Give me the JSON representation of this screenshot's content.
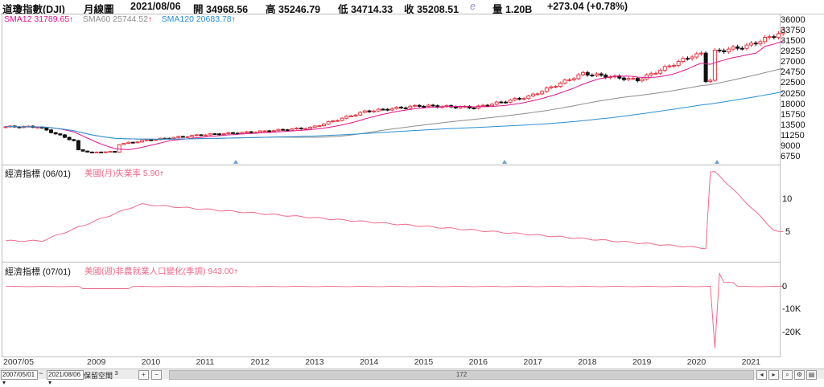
{
  "header": {
    "symbol": "道瓊指數(DJI)",
    "period": "月線圖",
    "date": "2021/08/06",
    "open": "開 34968.56",
    "high": "高 35246.79",
    "low": "低 34714.33",
    "close": "收 35208.51",
    "e_mark": "e",
    "volume": "量 1.20B",
    "change": "+273.04 (+0.78%)"
  },
  "main_panel": {
    "legend": [
      {
        "label": "SMA12 31789.65",
        "color": "#e0148c"
      },
      {
        "label": "SMA60 25744.52",
        "color": "#8c8c8c"
      },
      {
        "label": "SMA120 20683.78",
        "color": "#2a8fd0"
      }
    ],
    "y_ticks": [
      "36000",
      "33750",
      "31500",
      "29250",
      "27000",
      "24750",
      "22500",
      "20250",
      "18000",
      "15750",
      "13500",
      "11250",
      "9000",
      "6750"
    ]
  },
  "panel2": {
    "title": "經濟指標 (06/01)",
    "series_label": "美國(月)失業率 5.90",
    "y_ticks": [
      "10",
      "5"
    ]
  },
  "panel3": {
    "title": "經濟指標 (07/01)",
    "series_label": "美國(週)非農就業人口變化(季調) 943.00",
    "y_ticks": [
      "0",
      "-10K",
      "-20K"
    ]
  },
  "x_axis": [
    "2007/05",
    "2009",
    "2010",
    "2011",
    "2012",
    "2013",
    "2014",
    "2015",
    "2016",
    "2017",
    "2018",
    "2019",
    "2020",
    "2021"
  ],
  "status_bar": {
    "start_date": "2007/05/01",
    "tilde": "~",
    "end_date": "2021/08/06",
    "keep_space": "保留空間",
    "keep_space_value": "3",
    "scroll_count": "172"
  },
  "colors": {
    "up": "#e63946",
    "down": "#111111",
    "sma12": "#e0148c",
    "sma60": "#8c8c8c",
    "sma120": "#2a8fd0",
    "indicator": "#f06a8a"
  },
  "chart_data": [
    {
      "type": "candlestick",
      "title": "道瓊指數(DJI) 月線圖",
      "x_range": [
        "2007/05",
        "2021/08"
      ],
      "ylim": [
        6750,
        36000
      ],
      "yearly_close_approx": {
        "2007": 13300,
        "2008": 8776,
        "2009": 10428,
        "2010": 11578,
        "2011": 12218,
        "2012": 13104,
        "2013": 16577,
        "2014": 17823,
        "2015": 17425,
        "2016": 19763,
        "2017": 24719,
        "2018": 23327,
        "2019": 28538,
        "2020": 30606,
        "2021": 35208
      },
      "series": [
        {
          "name": "SMA12",
          "last": 31789.65
        },
        {
          "name": "SMA60",
          "last": 25744.52
        },
        {
          "name": "SMA120",
          "last": 20683.78
        }
      ]
    },
    {
      "type": "line",
      "title": "美國(月)失業率",
      "last": 5.9,
      "y_ticks": [
        10,
        5
      ],
      "ylim": [
        2,
        15
      ]
    },
    {
      "type": "line",
      "title": "美國(週)非農就業人口變化(季調)",
      "last": 943.0,
      "y_ticks": [
        "0",
        "-10K",
        "-20K"
      ],
      "ylim": [
        -22000,
        6000
      ]
    }
  ]
}
